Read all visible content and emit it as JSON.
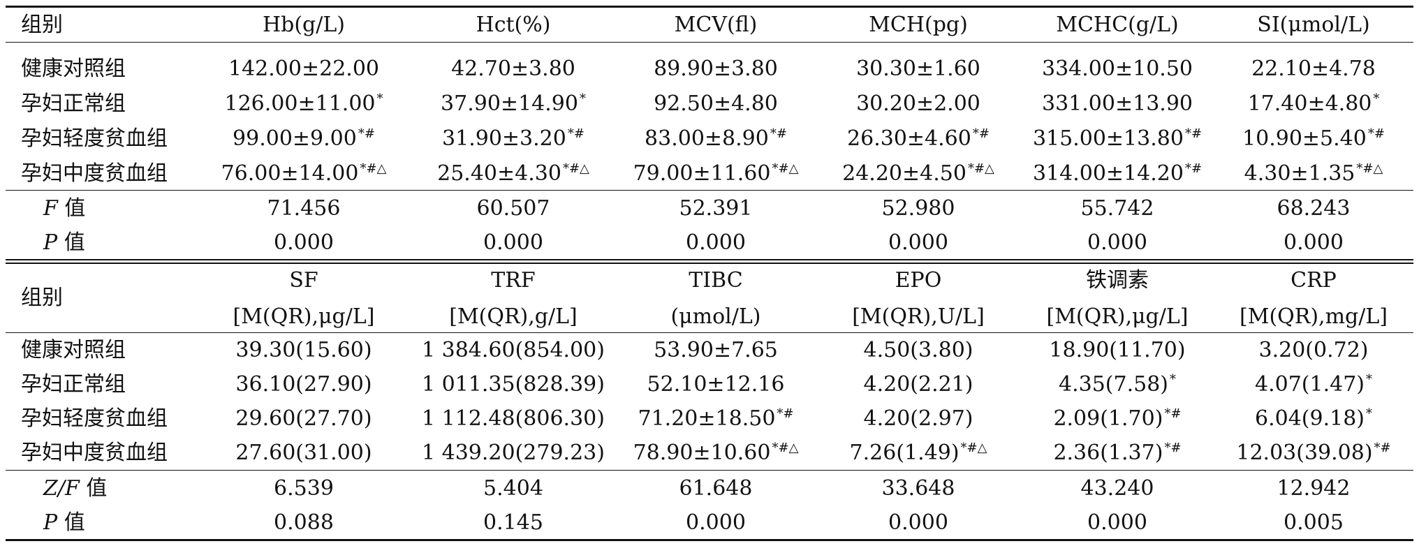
{
  "table1": {
    "header": [
      "组别",
      "Hb(g/L)",
      "Hct(%)",
      "MCV(fl)",
      "MCH(pg)",
      "MCHC(g/L)",
      "SI(μmol/L)"
    ],
    "rows": [
      {
        "group": "健康对照组",
        "cells": [
          {
            "v": "142.00±22.00",
            "s": ""
          },
          {
            "v": "42.70±3.80",
            "s": ""
          },
          {
            "v": "89.90±3.80",
            "s": ""
          },
          {
            "v": "30.30±1.60",
            "s": ""
          },
          {
            "v": "334.00±10.50",
            "s": ""
          },
          {
            "v": "22.10±4.78",
            "s": ""
          }
        ]
      },
      {
        "group": "孕妇正常组",
        "cells": [
          {
            "v": "126.00±11.00",
            "s": "*"
          },
          {
            "v": "37.90±14.90",
            "s": "*"
          },
          {
            "v": "92.50±4.80",
            "s": ""
          },
          {
            "v": "30.20±2.00",
            "s": ""
          },
          {
            "v": "331.00±13.90",
            "s": ""
          },
          {
            "v": "17.40±4.80",
            "s": "*"
          }
        ]
      },
      {
        "group": "孕妇轻度贫血组",
        "cells": [
          {
            "v": "99.00±9.00",
            "s": "*#"
          },
          {
            "v": "31.90±3.20",
            "s": "*#"
          },
          {
            "v": "83.00±8.90",
            "s": "*#"
          },
          {
            "v": "26.30±4.60",
            "s": "*#"
          },
          {
            "v": "315.00±13.80",
            "s": "*#"
          },
          {
            "v": "10.90±5.40",
            "s": "*#"
          }
        ]
      },
      {
        "group": "孕妇中度贫血组",
        "cells": [
          {
            "v": "76.00±14.00",
            "s": "*#△"
          },
          {
            "v": "25.40±4.30",
            "s": "*#△"
          },
          {
            "v": "79.00±11.60",
            "s": "*#△"
          },
          {
            "v": "24.20±4.50",
            "s": "*#△"
          },
          {
            "v": "314.00±14.20",
            "s": "*#"
          },
          {
            "v": "4.30±1.35",
            "s": "*#△"
          }
        ]
      }
    ],
    "stats": [
      {
        "italic": "F",
        "suffix": " 值",
        "values": [
          "71.456",
          "60.507",
          "52.391",
          "52.980",
          "55.742",
          "68.243"
        ]
      },
      {
        "italic": "P",
        "suffix": " 值",
        "values": [
          "0.000",
          "0.000",
          "0.000",
          "0.000",
          "0.000",
          "0.000"
        ]
      }
    ]
  },
  "table2": {
    "group_label": "组别",
    "header": [
      {
        "l1": "SF",
        "l2": "[M(QR),μg/L]"
      },
      {
        "l1": "TRF",
        "l2": "[M(QR),g/L]"
      },
      {
        "l1": "TIBC",
        "l2": "(μmol/L)"
      },
      {
        "l1": "EPO",
        "l2": "[M(QR),U/L]"
      },
      {
        "l1": "铁调素",
        "l2": "[M(QR),μg/L]"
      },
      {
        "l1": "CRP",
        "l2": "[M(QR),mg/L]"
      }
    ],
    "rows": [
      {
        "group": "健康对照组",
        "cells": [
          {
            "v": "39.30(15.60)",
            "s": ""
          },
          {
            "v": "1 384.60(854.00)",
            "s": ""
          },
          {
            "v": "53.90±7.65",
            "s": ""
          },
          {
            "v": "4.50(3.80)",
            "s": ""
          },
          {
            "v": "18.90(11.70)",
            "s": ""
          },
          {
            "v": "3.20(0.72)",
            "s": ""
          }
        ]
      },
      {
        "group": "孕妇正常组",
        "cells": [
          {
            "v": "36.10(27.90)",
            "s": ""
          },
          {
            "v": "1 011.35(828.39)",
            "s": ""
          },
          {
            "v": "52.10±12.16",
            "s": ""
          },
          {
            "v": "4.20(2.21)",
            "s": ""
          },
          {
            "v": "4.35(7.58)",
            "s": "*"
          },
          {
            "v": "4.07(1.47)",
            "s": "*"
          }
        ]
      },
      {
        "group": "孕妇轻度贫血组",
        "cells": [
          {
            "v": "29.60(27.70)",
            "s": ""
          },
          {
            "v": "1 112.48(806.30)",
            "s": ""
          },
          {
            "v": "71.20±18.50",
            "s": "*#"
          },
          {
            "v": "4.20(2.97)",
            "s": ""
          },
          {
            "v": "2.09(1.70)",
            "s": "*#"
          },
          {
            "v": "6.04(9.18)",
            "s": "*"
          }
        ]
      },
      {
        "group": "孕妇中度贫血组",
        "cells": [
          {
            "v": "27.60(31.00)",
            "s": ""
          },
          {
            "v": "1 439.20(279.23)",
            "s": ""
          },
          {
            "v": "78.90±10.60",
            "s": "*#△"
          },
          {
            "v": "7.26(1.49)",
            "s": "*#△"
          },
          {
            "v": "2.36(1.37)",
            "s": "*#"
          },
          {
            "v": "12.03(39.08)",
            "s": "*#"
          }
        ]
      }
    ],
    "stats": [
      {
        "italic": "Z/F",
        "suffix": " 值",
        "values": [
          "6.539",
          "5.404",
          "61.648",
          "33.648",
          "43.240",
          "12.942"
        ]
      },
      {
        "italic": "P",
        "suffix": " 值",
        "values": [
          "0.088",
          "0.145",
          "0.000",
          "0.000",
          "0.000",
          "0.005"
        ]
      }
    ]
  }
}
